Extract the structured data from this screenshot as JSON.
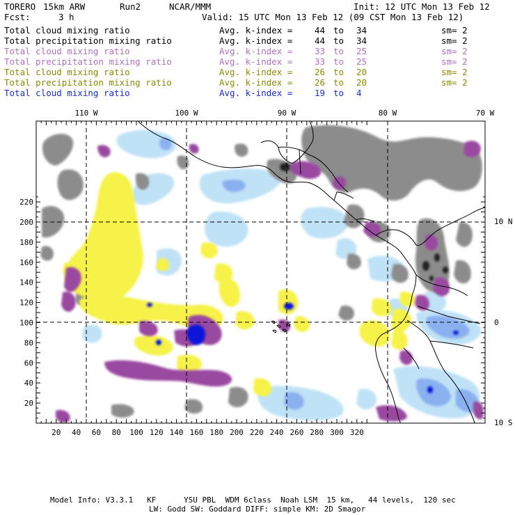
{
  "header": {
    "model": "TORERO",
    "resolution": "15km ARW",
    "run": "Run2",
    "center": "NCAR/MMM",
    "init": "Init: 12 UTC Mon 13 Feb 12",
    "fcst_label": "Fcst:",
    "fcst_value": "3 h",
    "valid": "Valid: 15 UTC Mon 13 Feb 12 (09 CST Mon 13 Feb 12)"
  },
  "legend": [
    {
      "field": "Total cloud mixing ratio",
      "avg": "Avg. k-index =",
      "k_from": "44",
      "to": "to",
      "k_to": "34",
      "sm": "sm= 2",
      "color": "#000000"
    },
    {
      "field": "Total precipitation mixing ratio",
      "avg": "Avg. k-index =",
      "k_from": "44",
      "to": "to",
      "k_to": "34",
      "sm": "sm= 2",
      "color": "#000000"
    },
    {
      "field": "Total cloud mixing ratio",
      "avg": "Avg. k-index =",
      "k_from": "33",
      "to": "to",
      "k_to": "25",
      "sm": "sm= 2",
      "color": "#b070c0"
    },
    {
      "field": "Total precipitation mixing ratio",
      "avg": "Avg. k-index =",
      "k_from": "33",
      "to": "to",
      "k_to": "25",
      "sm": "sm= 2",
      "color": "#b070c0"
    },
    {
      "field": "Total cloud mixing ratio",
      "avg": "Avg. k-index =",
      "k_from": "26",
      "to": "to",
      "k_to": "20",
      "sm": "sm= 2",
      "color": "#8a8a00"
    },
    {
      "field": "Total precipitation mixing ratio",
      "avg": "Avg. k-index =",
      "k_from": "26",
      "to": "to",
      "k_to": "20",
      "sm": "sm= 2",
      "color": "#8a8a00"
    },
    {
      "field": "Total cloud mixing ratio",
      "avg": "Avg. k-index =",
      "k_from": "19",
      "to": "to",
      "k_to": "4",
      "sm": "",
      "color": "#1a2ad8"
    }
  ],
  "map": {
    "x_ticks": [
      "20",
      "40",
      "60",
      "80",
      "100",
      "120",
      "140",
      "160",
      "180",
      "200",
      "220",
      "240",
      "260",
      "280",
      "300",
      "320"
    ],
    "y_ticks": [
      "20",
      "40",
      "60",
      "80",
      "100",
      "120",
      "140",
      "160",
      "180",
      "200",
      "220"
    ],
    "lon_labels": [
      "110 W",
      "100 W",
      "90 W",
      "80 W",
      "70 W"
    ],
    "lat_labels": [
      "10 N",
      "0",
      "10 S"
    ]
  },
  "footer": {
    "line1": "Model Info: V3.3.1   KF      YSU PBL  WDM 6class  Noah LSM  15 km,   44 levels,  120 sec",
    "line2": "LW: Godd SW: Goddard DIFF: simple KM: 2D Smagor"
  },
  "colors": {
    "cloud_high": "#8c8c8c",
    "cloud_peak": "#222222",
    "mid": "#9a4aa0",
    "low": "#f6f24a",
    "blue_light": "#bfe2f6",
    "blue_mid": "#8ab0f0",
    "blue_deep": "#0a14d8"
  }
}
